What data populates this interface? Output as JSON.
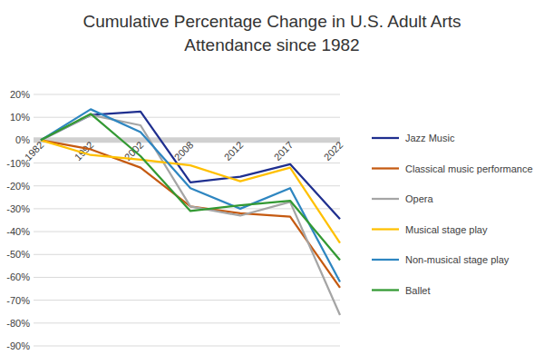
{
  "chart_data": {
    "type": "line",
    "title": "Cumulative Percentage Change in U.S. Adult Arts Attendance since 1982",
    "categories": [
      "1982",
      "1992",
      "2002",
      "2008",
      "2012",
      "2017",
      "2022"
    ],
    "series": [
      {
        "name": "Jazz Music",
        "color": "#1f2f8f",
        "values": [
          0,
          11,
          12.5,
          -18.5,
          -16,
          -10.5,
          -34.5
        ]
      },
      {
        "name": "Classical music performance",
        "color": "#c55a11",
        "values": [
          0,
          -4,
          -12,
          -29,
          -32,
          -33.5,
          -64.5
        ]
      },
      {
        "name": "Opera",
        "color": "#a5a5a5",
        "values": [
          0,
          11,
          6.5,
          -29,
          -33,
          -27,
          -76.5
        ]
      },
      {
        "name": "Musical stage play",
        "color": "#ffc000",
        "values": [
          0,
          -6.5,
          -8.5,
          -11,
          -18,
          -12,
          -45
        ]
      },
      {
        "name": "Non-musical stage play",
        "color": "#2e86c1",
        "values": [
          0,
          13.5,
          3.5,
          -21,
          -30,
          -21,
          -62
        ]
      },
      {
        "name": "Ballet",
        "color": "#339933",
        "values": [
          0,
          11.5,
          -7,
          -31,
          -28.5,
          -26.5,
          -52.5
        ]
      }
    ],
    "ylim": [
      -90,
      20
    ],
    "yticks": [
      {
        "value": -90,
        "label": "-90%"
      },
      {
        "value": -80,
        "label": "-80%"
      },
      {
        "value": -70,
        "label": "-70%"
      },
      {
        "value": -60,
        "label": "-60%"
      },
      {
        "value": -50,
        "label": "-50%"
      },
      {
        "value": -40,
        "label": "-40%"
      },
      {
        "value": -30,
        "label": "-30%"
      },
      {
        "value": -20,
        "label": "-20%"
      },
      {
        "value": -10,
        "label": "-10%"
      },
      {
        "value": 0,
        "label": "0%"
      },
      {
        "value": 10,
        "label": "10%"
      },
      {
        "value": 20,
        "label": "20%"
      }
    ],
    "grid": true,
    "legend": "right"
  }
}
